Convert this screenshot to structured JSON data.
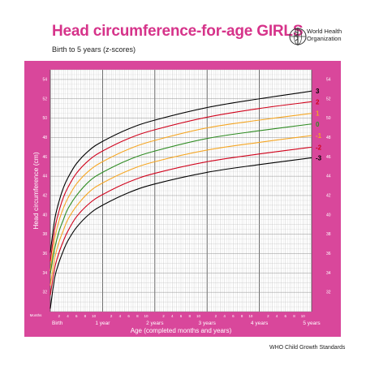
{
  "header": {
    "title": "Head circumference-for-age  GIRLS",
    "subtitle": "Birth to 5 years (z-scores)",
    "org_line1": "World Health",
    "org_line2": "Organization"
  },
  "footer": {
    "text": "WHO Child Growth Standards"
  },
  "colors": {
    "frame": "#d9479b",
    "plot_bg": "#ffffff",
    "grid_minor": "#b9b9b9",
    "grid_major": "#555555",
    "accent_text": "#d6338a"
  },
  "chart_data": {
    "type": "line",
    "xlabel": "Age (completed months and years)",
    "ylabel": "Head circumference (cm)",
    "x_unit_label": "Months",
    "xlim": [
      0,
      60
    ],
    "ylim": [
      30,
      55
    ],
    "y_ticks": [
      32,
      34,
      36,
      38,
      40,
      42,
      44,
      46,
      48,
      50,
      52,
      54
    ],
    "x_tick_labels": [
      {
        "month": 0,
        "label": "Birth"
      },
      {
        "month": 2,
        "label": "2"
      },
      {
        "month": 4,
        "label": "4"
      },
      {
        "month": 6,
        "label": "6"
      },
      {
        "month": 8,
        "label": "8"
      },
      {
        "month": 10,
        "label": "10"
      },
      {
        "month": 12,
        "label": "1 year"
      },
      {
        "month": 14,
        "label": "2"
      },
      {
        "month": 16,
        "label": "4"
      },
      {
        "month": 18,
        "label": "6"
      },
      {
        "month": 20,
        "label": "8"
      },
      {
        "month": 22,
        "label": "10"
      },
      {
        "month": 24,
        "label": "2 years"
      },
      {
        "month": 26,
        "label": "2"
      },
      {
        "month": 28,
        "label": "4"
      },
      {
        "month": 30,
        "label": "6"
      },
      {
        "month": 32,
        "label": "8"
      },
      {
        "month": 34,
        "label": "10"
      },
      {
        "month": 36,
        "label": "3 years"
      },
      {
        "month": 38,
        "label": "2"
      },
      {
        "month": 40,
        "label": "4"
      },
      {
        "month": 42,
        "label": "6"
      },
      {
        "month": 44,
        "label": "8"
      },
      {
        "month": 46,
        "label": "10"
      },
      {
        "month": 48,
        "label": "4 years"
      },
      {
        "month": 50,
        "label": "2"
      },
      {
        "month": 52,
        "label": "4"
      },
      {
        "month": 54,
        "label": "6"
      },
      {
        "month": 56,
        "label": "8"
      },
      {
        "month": 58,
        "label": "10"
      },
      {
        "month": 60,
        "label": "5 years"
      }
    ],
    "grid": true,
    "x": [
      0,
      1,
      2,
      3,
      4,
      6,
      9,
      12,
      18,
      24,
      36,
      48,
      60
    ],
    "series": [
      {
        "name": "3",
        "color": "#000000",
        "values": [
          36.1,
          39.5,
          41.4,
          42.8,
          43.8,
          45.3,
          46.7,
          47.6,
          48.9,
          49.8,
          51.1,
          52.0,
          52.8
        ]
      },
      {
        "name": "2",
        "color": "#d0021b",
        "values": [
          35.2,
          38.5,
          40.4,
          41.8,
          42.8,
          44.3,
          45.7,
          46.6,
          47.9,
          48.8,
          50.1,
          51.0,
          51.7
        ]
      },
      {
        "name": "1",
        "color": "#f5a623",
        "values": [
          34.2,
          37.5,
          39.4,
          40.7,
          41.7,
          43.2,
          44.6,
          45.5,
          46.8,
          47.7,
          49.0,
          49.8,
          50.5
        ]
      },
      {
        "name": "0",
        "color": "#2e8b22",
        "values": [
          33.9,
          36.5,
          38.3,
          39.5,
          40.6,
          42.0,
          43.5,
          44.4,
          45.7,
          46.6,
          47.9,
          48.7,
          49.4
        ]
      },
      {
        "name": "-1",
        "color": "#f5a623",
        "values": [
          32.7,
          35.5,
          37.2,
          38.4,
          39.5,
          40.9,
          42.4,
          43.3,
          44.6,
          45.5,
          46.7,
          47.5,
          48.2
        ]
      },
      {
        "name": "-2",
        "color": "#d0021b",
        "values": [
          31.7,
          34.5,
          36.1,
          37.3,
          38.3,
          39.8,
          41.2,
          42.1,
          43.4,
          44.3,
          45.5,
          46.3,
          47.0
        ]
      },
      {
        "name": "-3",
        "color": "#000000",
        "values": [
          30.3,
          33.5,
          35.1,
          36.3,
          37.3,
          38.7,
          40.1,
          41.0,
          42.3,
          43.2,
          44.4,
          45.2,
          45.9
        ]
      }
    ]
  }
}
